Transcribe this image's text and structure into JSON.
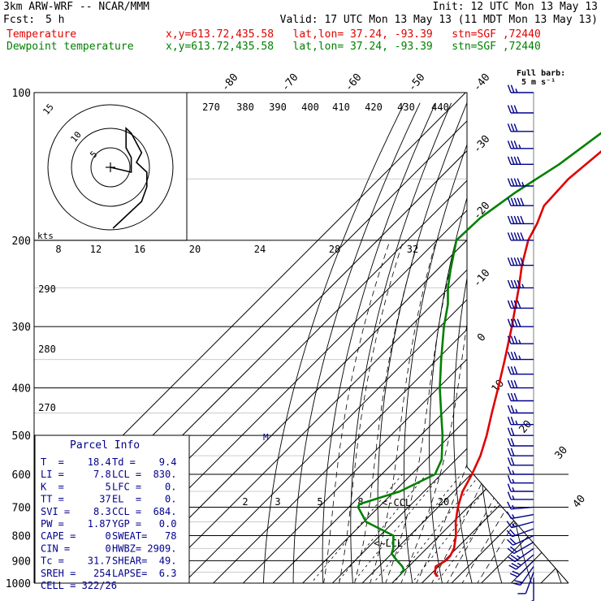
{
  "header": {
    "model": "3km ARW-WRF -- NCAR/MMM",
    "init": "Init: 12 UTC Mon 13 May 13",
    "fcst_label": "Fcst:",
    "fcst_value": "5 h",
    "valid": "Valid: 17 UTC Mon 13 May 13 (11 MDT Mon 13 May 13)"
  },
  "legend": [
    {
      "name": "Temperature",
      "info": "x,y=613.72,435.58   lat,lon= 37.24, -93.39   stn=SGF ,72440",
      "color": "#e00000"
    },
    {
      "name": "Dewpoint temperature",
      "info": "x,y=613.72,435.58   lat,lon= 37.24, -93.39   stn=SGF ,72440",
      "color": "#008000"
    }
  ],
  "wind_note": {
    "line1": "Full barb:",
    "line2": "5 m s⁻¹"
  },
  "hodograph": {
    "units": "kts",
    "ring_labels": [
      "5",
      "10",
      "15"
    ],
    "speed_labels": [
      "8",
      "12",
      "16",
      "20",
      "24",
      "28",
      "32"
    ]
  },
  "parcel_info": {
    "title": "Parcel Info",
    "rows": [
      [
        "T  =    18.4",
        "Td =    9.4"
      ],
      [
        "LI =     7.8",
        "LCL =  830."
      ],
      [
        "K  =       5",
        "LFC =    0."
      ],
      [
        "TT =      37",
        "EL  =    0."
      ],
      [
        "SVI =    8.3",
        "CCL =  684."
      ],
      [
        "PW =    1.87",
        "YGP =   0.0"
      ],
      [
        "CAPE =     0",
        "SWEAT=   78"
      ],
      [
        "CIN =      0",
        "HWBZ= 2909."
      ],
      [
        "Tc =    31.7",
        "SHEAR=  49."
      ],
      [
        "SREH =   254",
        "LAPSE=  6.3"
      ],
      [
        "CELL = 322/26",
        ""
      ]
    ]
  },
  "annotations": {
    "ccl": "<-CCL",
    "lcl": "<-LCL"
  },
  "chart_data": {
    "type": "line",
    "diagram": "skew-T log-P",
    "y_axis": {
      "label": "",
      "scale": "log",
      "ticks": [
        100,
        200,
        300,
        400,
        500,
        600,
        700,
        800,
        900,
        1000
      ]
    },
    "isotherm_labels": [
      "-80",
      "-70",
      "-60",
      "-50",
      "-40",
      "-30",
      "-20",
      "-10",
      "0",
      "10",
      "20",
      "30",
      "40"
    ],
    "theta_labels": [
      "270",
      "380",
      "390",
      "400",
      "410",
      "420",
      "430",
      "440",
      "290",
      "280",
      "270"
    ],
    "mixing_ratio_labels": [
      "2",
      "3",
      "5",
      "8",
      "20"
    ],
    "series": [
      {
        "name": "Temperature",
        "color": "#e00000",
        "p": [
          970,
          955,
          925,
          900,
          880,
          850,
          800,
          750,
          700,
          650,
          600,
          550,
          500,
          450,
          400,
          350,
          300,
          250,
          225,
          200,
          185,
          170,
          150,
          130,
          110,
          100
        ],
        "t": [
          23.2,
          21.1,
          19.1,
          20.5,
          20.4,
          19.2,
          15.5,
          10.8,
          6.6,
          2.9,
          0.3,
          -3.1,
          -7.8,
          -13.6,
          -19.9,
          -27.2,
          -35.9,
          -46.6,
          -53.1,
          -59.4,
          -62.0,
          -65.7,
          -66.5,
          -64.5,
          -60.0,
          -56.3
        ]
      },
      {
        "name": "Dewpoint temperature",
        "color": "#008000",
        "p": [
          955,
          940,
          925,
          900,
          870,
          850,
          800,
          750,
          700,
          690,
          650,
          600,
          560,
          500,
          450,
          400,
          350,
          300,
          270,
          250,
          230,
          200,
          180,
          160,
          140,
          120,
          110,
          100
        ],
        "t": [
          9.6,
          9.6,
          7.9,
          4.2,
          -0.1,
          -1.2,
          -5.5,
          -19.3,
          -26.9,
          -27.5,
          -18.1,
          -12.1,
          -14.8,
          -22.6,
          -30.6,
          -39.5,
          -48.6,
          -58.7,
          -64.9,
          -70.4,
          -75.5,
          -83.5,
          -83.0,
          -79.8,
          -74.5,
          -70.7,
          -68.7,
          -65.0
        ]
      }
    ],
    "wind_barbs": {
      "units": "m s-1",
      "p": [
        975,
        950,
        925,
        900,
        875,
        850,
        825,
        800,
        775,
        750,
        725,
        700,
        675,
        650,
        625,
        600,
        575,
        550,
        525,
        500,
        475,
        450,
        425,
        400,
        375,
        350,
        325,
        300,
        275,
        250,
        225,
        200,
        185,
        170,
        155,
        140,
        130,
        120,
        110,
        100
      ],
      "speed": [
        3,
        6,
        9,
        11,
        12,
        12,
        11,
        10,
        9,
        8,
        7,
        7,
        7,
        7,
        8,
        8,
        9,
        10,
        11,
        11,
        12,
        13,
        14,
        15,
        16,
        17,
        18,
        19,
        20,
        22,
        24,
        26,
        25,
        24,
        22,
        20,
        18,
        16,
        14,
        12
      ],
      "dir": [
        180,
        200,
        215,
        225,
        230,
        235,
        240,
        245,
        250,
        255,
        260,
        265,
        270,
        270,
        270,
        270,
        270,
        270,
        270,
        270,
        270,
        270,
        270,
        270,
        270,
        270,
        270,
        270,
        270,
        270,
        270,
        270,
        270,
        270,
        270,
        270,
        270,
        270,
        270,
        270
      ]
    },
    "hodograph_path": {
      "u_kts": [
        0,
        4,
        8,
        8,
        6,
        6,
        6,
        8,
        10,
        12,
        10,
        14,
        14,
        12,
        8,
        4,
        2,
        1
      ],
      "v_kts": [
        0,
        -1,
        -2,
        4,
        8,
        12,
        16,
        14,
        10,
        6,
        2,
        -2,
        -8,
        -14,
        -18,
        -22,
        -24,
        -25
      ]
    }
  }
}
